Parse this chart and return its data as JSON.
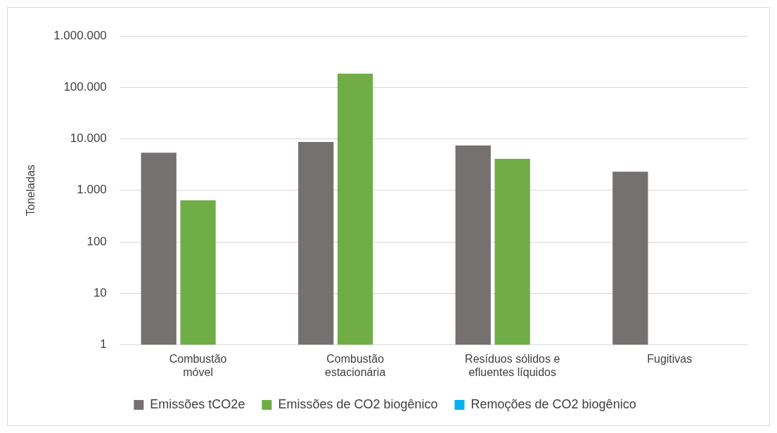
{
  "chart_data": {
    "type": "bar",
    "ylabel": "Toneladas",
    "categories": [
      "Combustão móvel",
      "Combustão estacionária",
      "Resíduos sólidos e efluentes líquidos",
      "Fugitivas"
    ],
    "series": [
      {
        "name": "Emissões tCO2e",
        "color": "#767171",
        "values": [
          5400,
          8700,
          7400,
          2300
        ]
      },
      {
        "name": "Emissões de CO2 biogênico",
        "color": "#70ad47",
        "values": [
          640,
          185000,
          4100,
          1
        ]
      },
      {
        "name": "Remoções de CO2 biogênico",
        "color": "#00b0f0",
        "values": [
          1,
          1,
          1,
          1
        ]
      }
    ],
    "log": true,
    "ylim": [
      1,
      1000000
    ],
    "yticks": [
      1,
      10,
      100,
      {
        "value": 1000,
        "label": "1.000"
      },
      {
        "value": 10000,
        "label": "10.000"
      },
      {
        "value": 100000,
        "label": "100.000"
      },
      {
        "value": 1000000,
        "label": "1.000.000"
      }
    ],
    "grid": "y",
    "legend": "bottom"
  }
}
